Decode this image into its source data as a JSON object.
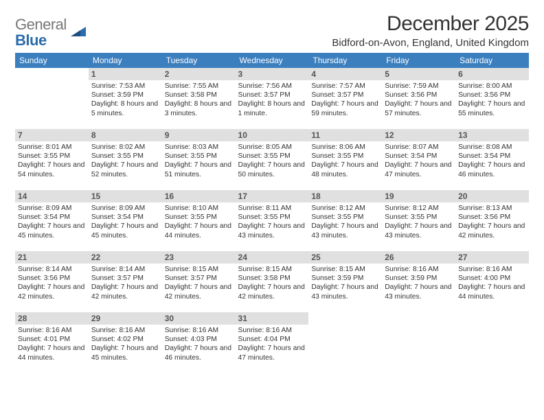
{
  "logo": {
    "word1": "General",
    "word2": "Blue"
  },
  "title": "December 2025",
  "location": "Bidford-on-Avon, England, United Kingdom",
  "day_headers": [
    "Sunday",
    "Monday",
    "Tuesday",
    "Wednesday",
    "Thursday",
    "Friday",
    "Saturday"
  ],
  "colors": {
    "header_bg": "#3b7fbf",
    "header_text": "#ffffff",
    "daynum_bg": "#e0e0e0",
    "logo_word1": "#777777",
    "logo_word2": "#2b6cab",
    "body_text": "#333333"
  },
  "weeks": [
    [
      {
        "n": "",
        "sr": "",
        "ss": "",
        "dl": ""
      },
      {
        "n": "1",
        "sr": "Sunrise: 7:53 AM",
        "ss": "Sunset: 3:59 PM",
        "dl": "Daylight: 8 hours and 5 minutes."
      },
      {
        "n": "2",
        "sr": "Sunrise: 7:55 AM",
        "ss": "Sunset: 3:58 PM",
        "dl": "Daylight: 8 hours and 3 minutes."
      },
      {
        "n": "3",
        "sr": "Sunrise: 7:56 AM",
        "ss": "Sunset: 3:57 PM",
        "dl": "Daylight: 8 hours and 1 minute."
      },
      {
        "n": "4",
        "sr": "Sunrise: 7:57 AM",
        "ss": "Sunset: 3:57 PM",
        "dl": "Daylight: 7 hours and 59 minutes."
      },
      {
        "n": "5",
        "sr": "Sunrise: 7:59 AM",
        "ss": "Sunset: 3:56 PM",
        "dl": "Daylight: 7 hours and 57 minutes."
      },
      {
        "n": "6",
        "sr": "Sunrise: 8:00 AM",
        "ss": "Sunset: 3:56 PM",
        "dl": "Daylight: 7 hours and 55 minutes."
      }
    ],
    [
      {
        "n": "7",
        "sr": "Sunrise: 8:01 AM",
        "ss": "Sunset: 3:55 PM",
        "dl": "Daylight: 7 hours and 54 minutes."
      },
      {
        "n": "8",
        "sr": "Sunrise: 8:02 AM",
        "ss": "Sunset: 3:55 PM",
        "dl": "Daylight: 7 hours and 52 minutes."
      },
      {
        "n": "9",
        "sr": "Sunrise: 8:03 AM",
        "ss": "Sunset: 3:55 PM",
        "dl": "Daylight: 7 hours and 51 minutes."
      },
      {
        "n": "10",
        "sr": "Sunrise: 8:05 AM",
        "ss": "Sunset: 3:55 PM",
        "dl": "Daylight: 7 hours and 50 minutes."
      },
      {
        "n": "11",
        "sr": "Sunrise: 8:06 AM",
        "ss": "Sunset: 3:55 PM",
        "dl": "Daylight: 7 hours and 48 minutes."
      },
      {
        "n": "12",
        "sr": "Sunrise: 8:07 AM",
        "ss": "Sunset: 3:54 PM",
        "dl": "Daylight: 7 hours and 47 minutes."
      },
      {
        "n": "13",
        "sr": "Sunrise: 8:08 AM",
        "ss": "Sunset: 3:54 PM",
        "dl": "Daylight: 7 hours and 46 minutes."
      }
    ],
    [
      {
        "n": "14",
        "sr": "Sunrise: 8:09 AM",
        "ss": "Sunset: 3:54 PM",
        "dl": "Daylight: 7 hours and 45 minutes."
      },
      {
        "n": "15",
        "sr": "Sunrise: 8:09 AM",
        "ss": "Sunset: 3:54 PM",
        "dl": "Daylight: 7 hours and 45 minutes."
      },
      {
        "n": "16",
        "sr": "Sunrise: 8:10 AM",
        "ss": "Sunset: 3:55 PM",
        "dl": "Daylight: 7 hours and 44 minutes."
      },
      {
        "n": "17",
        "sr": "Sunrise: 8:11 AM",
        "ss": "Sunset: 3:55 PM",
        "dl": "Daylight: 7 hours and 43 minutes."
      },
      {
        "n": "18",
        "sr": "Sunrise: 8:12 AM",
        "ss": "Sunset: 3:55 PM",
        "dl": "Daylight: 7 hours and 43 minutes."
      },
      {
        "n": "19",
        "sr": "Sunrise: 8:12 AM",
        "ss": "Sunset: 3:55 PM",
        "dl": "Daylight: 7 hours and 43 minutes."
      },
      {
        "n": "20",
        "sr": "Sunrise: 8:13 AM",
        "ss": "Sunset: 3:56 PM",
        "dl": "Daylight: 7 hours and 42 minutes."
      }
    ],
    [
      {
        "n": "21",
        "sr": "Sunrise: 8:14 AM",
        "ss": "Sunset: 3:56 PM",
        "dl": "Daylight: 7 hours and 42 minutes."
      },
      {
        "n": "22",
        "sr": "Sunrise: 8:14 AM",
        "ss": "Sunset: 3:57 PM",
        "dl": "Daylight: 7 hours and 42 minutes."
      },
      {
        "n": "23",
        "sr": "Sunrise: 8:15 AM",
        "ss": "Sunset: 3:57 PM",
        "dl": "Daylight: 7 hours and 42 minutes."
      },
      {
        "n": "24",
        "sr": "Sunrise: 8:15 AM",
        "ss": "Sunset: 3:58 PM",
        "dl": "Daylight: 7 hours and 42 minutes."
      },
      {
        "n": "25",
        "sr": "Sunrise: 8:15 AM",
        "ss": "Sunset: 3:59 PM",
        "dl": "Daylight: 7 hours and 43 minutes."
      },
      {
        "n": "26",
        "sr": "Sunrise: 8:16 AM",
        "ss": "Sunset: 3:59 PM",
        "dl": "Daylight: 7 hours and 43 minutes."
      },
      {
        "n": "27",
        "sr": "Sunrise: 8:16 AM",
        "ss": "Sunset: 4:00 PM",
        "dl": "Daylight: 7 hours and 44 minutes."
      }
    ],
    [
      {
        "n": "28",
        "sr": "Sunrise: 8:16 AM",
        "ss": "Sunset: 4:01 PM",
        "dl": "Daylight: 7 hours and 44 minutes."
      },
      {
        "n": "29",
        "sr": "Sunrise: 8:16 AM",
        "ss": "Sunset: 4:02 PM",
        "dl": "Daylight: 7 hours and 45 minutes."
      },
      {
        "n": "30",
        "sr": "Sunrise: 8:16 AM",
        "ss": "Sunset: 4:03 PM",
        "dl": "Daylight: 7 hours and 46 minutes."
      },
      {
        "n": "31",
        "sr": "Sunrise: 8:16 AM",
        "ss": "Sunset: 4:04 PM",
        "dl": "Daylight: 7 hours and 47 minutes."
      },
      {
        "n": "",
        "sr": "",
        "ss": "",
        "dl": ""
      },
      {
        "n": "",
        "sr": "",
        "ss": "",
        "dl": ""
      },
      {
        "n": "",
        "sr": "",
        "ss": "",
        "dl": ""
      }
    ]
  ]
}
